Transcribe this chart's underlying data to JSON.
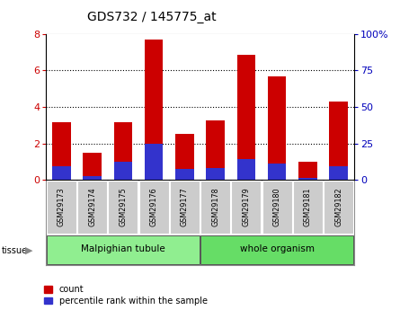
{
  "title": "GDS732 / 145775_at",
  "samples": [
    "GSM29173",
    "GSM29174",
    "GSM29175",
    "GSM29176",
    "GSM29177",
    "GSM29178",
    "GSM29179",
    "GSM29180",
    "GSM29181",
    "GSM29182"
  ],
  "count_values": [
    3.15,
    1.5,
    3.15,
    7.7,
    2.5,
    3.25,
    6.85,
    5.7,
    1.0,
    4.3
  ],
  "percentile_values": [
    9.375,
    2.5,
    12.5,
    25.0,
    7.5,
    8.125,
    14.375,
    11.25,
    1.25,
    9.375
  ],
  "groups": [
    {
      "label": "Malpighian tubule",
      "start": 0,
      "end": 4,
      "color": "#90ee90"
    },
    {
      "label": "whole organism",
      "start": 5,
      "end": 9,
      "color": "#66dd66"
    }
  ],
  "ylim_left": [
    0,
    8
  ],
  "ylim_right": [
    0,
    100
  ],
  "yticks_left": [
    0,
    2,
    4,
    6,
    8
  ],
  "yticks_right": [
    0,
    25,
    50,
    75,
    100
  ],
  "bar_color_red": "#cc0000",
  "bar_color_blue": "#3333cc",
  "grid_color": "black",
  "tick_label_bg": "#cccccc",
  "legend_count_label": "count",
  "legend_pct_label": "percentile rank within the sample",
  "tissue_label": "tissue",
  "ylabel_left_color": "#cc0000",
  "ylabel_right_color": "#0000bb",
  "outer_border_color": "#999999",
  "title_fontsize": 10,
  "axis_fontsize": 8,
  "label_fontsize": 7
}
